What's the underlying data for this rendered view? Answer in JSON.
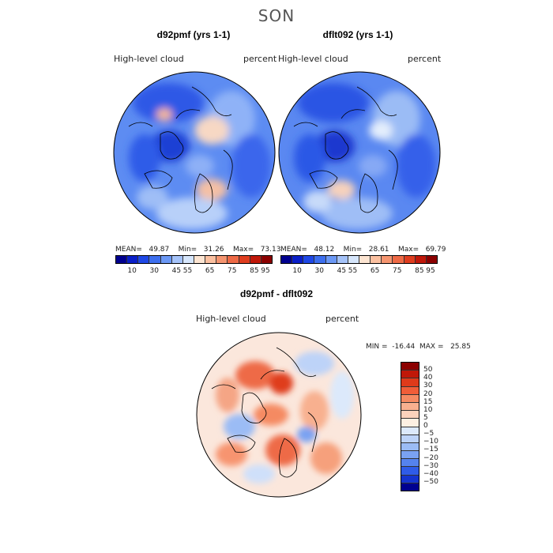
{
  "season": "SON",
  "panels": [
    {
      "title": "d92pmf (yrs 1-1)",
      "variable": "High-level cloud",
      "units": "percent",
      "stats": "MEAN=   49.87    Min=   31.26    Max=   73.13"
    },
    {
      "title": "dflt092 (yrs 1-1)",
      "variable": "High-level cloud",
      "units": "percent",
      "stats": "MEAN=   48.12    Min=   28.61    Max=   69.79"
    }
  ],
  "abs_colorbar": {
    "colors": [
      "#00008f",
      "#0a1fc8",
      "#1f48e6",
      "#3d6fee",
      "#6b98f5",
      "#a5c3f9",
      "#d6e6fc",
      "#fde5d2",
      "#fbc0a0",
      "#f59570",
      "#ee6a46",
      "#df3d1f",
      "#c0180a",
      "#8b0000"
    ],
    "ticks": [
      "10",
      "30",
      "45",
      "55",
      "65",
      "75",
      "85",
      "95"
    ]
  },
  "diff_panel": {
    "title": "d92pmf - dflt092",
    "variable": "High-level cloud",
    "units": "percent",
    "minmax": "MIN =  -16.44  MAX =   25.85"
  },
  "diff_colorbar": {
    "colors": [
      "#8b0000",
      "#c01808",
      "#df3a1a",
      "#f05d38",
      "#f58a62",
      "#f8b08f",
      "#fbd2bc",
      "#fdf0e2",
      "#dce9fb",
      "#bdd3f8",
      "#9bbcf5",
      "#7aa2f2",
      "#5583ee",
      "#2f5ce8",
      "#1534cf",
      "#00008f"
    ],
    "labels": [
      "50",
      "40",
      "30",
      "20",
      "15",
      "10",
      "5",
      "0",
      "−5",
      "−10",
      "−15",
      "−20",
      "−30",
      "−40",
      "−50"
    ]
  }
}
